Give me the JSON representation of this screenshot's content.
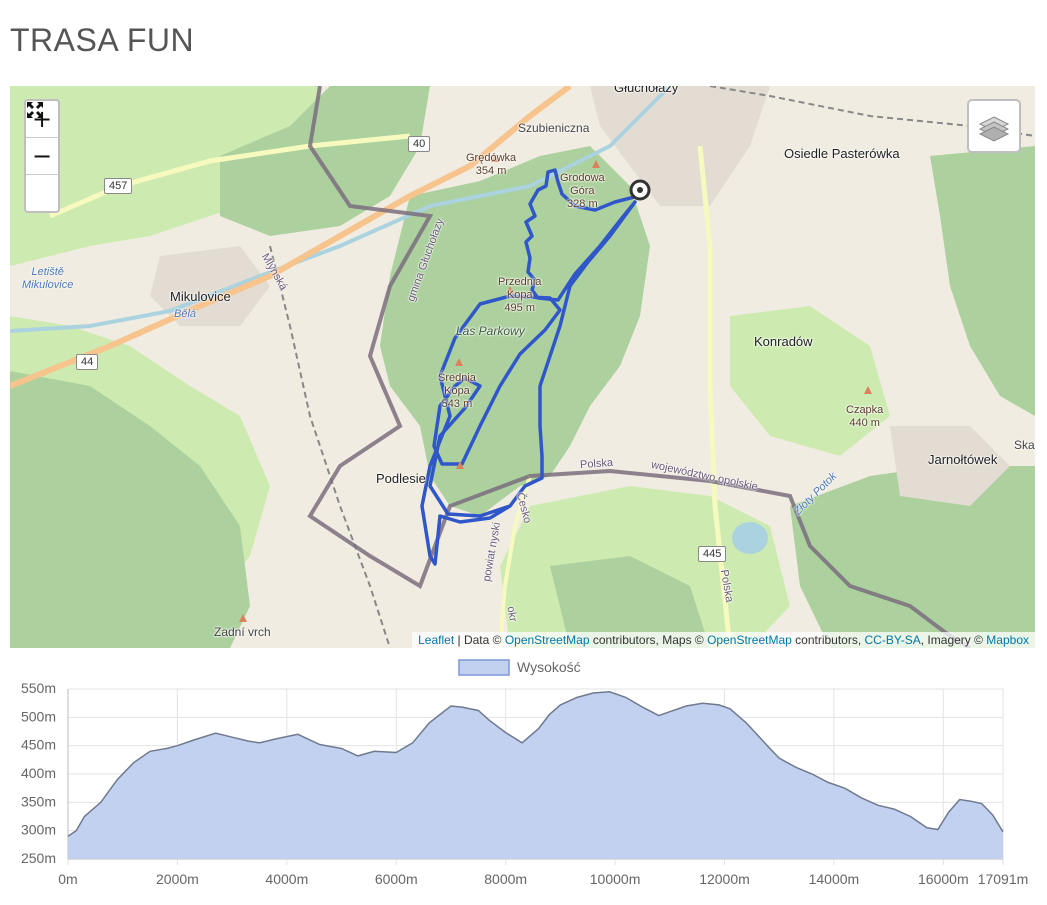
{
  "page": {
    "title": "TRASA FUN"
  },
  "map": {
    "controls": {
      "zoom_in": "+",
      "zoom_out": "−",
      "fullscreen_icon": "fullscreen-icon",
      "layers_icon": "layers-icon"
    },
    "attribution": {
      "leaflet": "Leaflet",
      "sep1": " | Data © ",
      "osm1": "OpenStreetMap",
      "mid1": " contributors, Maps © ",
      "osm2": "OpenStreetMap",
      "mid2": " contributors, ",
      "license": "CC-BY-SA",
      "mid3": ", Imagery © ",
      "mapbox": "Mapbox"
    },
    "labels": {
      "glucholazy": "Głuchołazy",
      "szubieniczna": "Szubieniczna",
      "gredowka": "Grędówka",
      "gredowka_h": "354 m",
      "grodowa": "Grodowa",
      "grodowa2": "Góra",
      "grodowa_h": "328 m",
      "osiedle": "Osiedle Pasterówka",
      "letiste": "Letiště",
      "letiste2": "Mikulovice",
      "mikulovice": "Mikulovice",
      "bela": "Bělá",
      "mlynska": "Mlýnská",
      "gmina": "gmina Głuchołazy",
      "przednia": "Przednia",
      "przednia2": "Kopa",
      "przednia_h": "495 m",
      "las": "Las Parkowy",
      "srednia": "Średnia",
      "srednia2": "Kopa",
      "srednia_h": "543 m",
      "konradow": "Konradów",
      "czapka": "Czapka",
      "czapka_h": "440 m",
      "jarnoltowek": "Jarnołtówek",
      "ska": "Ska",
      "podlesie": "Podlesie",
      "polska": "Polska",
      "wojewodztwo": "województwo opolskie",
      "cesko": "Česko",
      "powiat": "powiat nyski",
      "okr": "okr",
      "zloty": "Złoty Potok",
      "zadni": "Zadní vrch",
      "polska2": "Polska"
    },
    "road_numbers": {
      "r40": "40",
      "r457": "457",
      "r44": "44",
      "r445": "445"
    },
    "colors": {
      "route": "#2f57c9",
      "forest": "#add19e",
      "meadow": "#cdebb0",
      "border": "#6e6e6e"
    }
  },
  "chart_data": {
    "type": "area",
    "title": "",
    "legend": "Wysokość",
    "legend_position": "top",
    "xlabel": "",
    "ylabel": "",
    "xlim": [
      0,
      17091
    ],
    "ylim": [
      250,
      550
    ],
    "x_ticks": [
      "0m",
      "2000m",
      "4000m",
      "6000m",
      "8000m",
      "10000m",
      "12000m",
      "14000m",
      "16000m",
      "17091m"
    ],
    "y_ticks": [
      "550m",
      "500m",
      "450m",
      "400m",
      "350m",
      "300m",
      "250m"
    ],
    "grid": true,
    "fill_color": "#c2d1f0",
    "line_color": "#6f7a8f",
    "series": [
      {
        "name": "Wysokość",
        "x": [
          0,
          150,
          300,
          600,
          900,
          1200,
          1500,
          1800,
          2000,
          2300,
          2700,
          3000,
          3300,
          3500,
          3800,
          4200,
          4600,
          5000,
          5300,
          5600,
          6000,
          6300,
          6600,
          6800,
          7000,
          7200,
          7500,
          7700,
          8000,
          8300,
          8600,
          8800,
          9000,
          9300,
          9600,
          9900,
          10200,
          10500,
          10800,
          11000,
          11300,
          11600,
          11900,
          12100,
          12400,
          12800,
          13000,
          13300,
          13600,
          13900,
          14200,
          14500,
          14800,
          15100,
          15400,
          15700,
          15900,
          16100,
          16300,
          16500,
          16700,
          16900,
          17091
        ],
        "y": [
          290,
          300,
          325,
          350,
          390,
          420,
          440,
          445,
          450,
          460,
          472,
          465,
          458,
          455,
          462,
          470,
          452,
          445,
          432,
          440,
          438,
          455,
          490,
          505,
          520,
          518,
          512,
          495,
          473,
          455,
          480,
          505,
          522,
          535,
          543,
          545,
          535,
          518,
          503,
          510,
          520,
          525,
          522,
          515,
          490,
          448,
          428,
          412,
          400,
          385,
          375,
          358,
          345,
          338,
          325,
          305,
          302,
          333,
          355,
          352,
          348,
          328,
          298
        ]
      }
    ]
  }
}
